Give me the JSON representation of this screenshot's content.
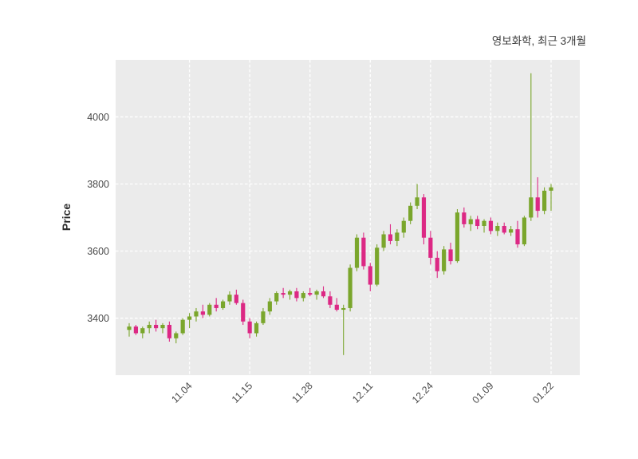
{
  "chart_data": {
    "type": "candlestick",
    "title": "영보화학, 최근 3개월",
    "ylabel": "Price",
    "plot_bg": "#ebebeb",
    "grid_color": "#ffffff",
    "up_color": "#7aa62c",
    "down_color": "#dc2884",
    "ylim": [
      3230,
      4170
    ],
    "yticks": [
      3400,
      3600,
      3800,
      4000
    ],
    "xticks": [
      {
        "index": 9,
        "label": "11.04"
      },
      {
        "index": 18,
        "label": "11.15"
      },
      {
        "index": 27,
        "label": "11.28"
      },
      {
        "index": 36,
        "label": "12.11"
      },
      {
        "index": 45,
        "label": "12.24"
      },
      {
        "index": 54,
        "label": "01.09"
      },
      {
        "index": 63,
        "label": "01.22"
      }
    ],
    "candles": [
      [
        "10.22",
        3365,
        3385,
        3345,
        3375
      ],
      [
        "10.23",
        3375,
        3380,
        3350,
        3355
      ],
      [
        "10.24",
        3355,
        3375,
        3340,
        3370
      ],
      [
        "10.25",
        3370,
        3390,
        3355,
        3380
      ],
      [
        "10.28",
        3380,
        3395,
        3360,
        3370
      ],
      [
        "10.29",
        3370,
        3385,
        3355,
        3380
      ],
      [
        "10.30",
        3380,
        3390,
        3330,
        3340
      ],
      [
        "10.31",
        3340,
        3360,
        3325,
        3355
      ],
      [
        "11.01",
        3355,
        3400,
        3350,
        3395
      ],
      [
        "11.04",
        3395,
        3415,
        3370,
        3405
      ],
      [
        "11.05",
        3405,
        3430,
        3390,
        3420
      ],
      [
        "11.06",
        3420,
        3440,
        3400,
        3410
      ],
      [
        "11.07",
        3410,
        3445,
        3405,
        3440
      ],
      [
        "11.08",
        3440,
        3460,
        3420,
        3430
      ],
      [
        "11.11",
        3430,
        3455,
        3425,
        3450
      ],
      [
        "11.12",
        3450,
        3480,
        3440,
        3470
      ],
      [
        "11.13",
        3470,
        3485,
        3440,
        3445
      ],
      [
        "11.14",
        3445,
        3455,
        3380,
        3390
      ],
      [
        "11.15",
        3390,
        3400,
        3340,
        3355
      ],
      [
        "11.18",
        3355,
        3390,
        3345,
        3385
      ],
      [
        "11.19",
        3385,
        3430,
        3380,
        3420
      ],
      [
        "11.20",
        3420,
        3460,
        3410,
        3450
      ],
      [
        "11.21",
        3450,
        3480,
        3440,
        3475
      ],
      [
        "11.22",
        3475,
        3490,
        3460,
        3470
      ],
      [
        "11.25",
        3470,
        3485,
        3455,
        3480
      ],
      [
        "11.26",
        3480,
        3490,
        3450,
        3460
      ],
      [
        "11.27",
        3460,
        3480,
        3450,
        3475
      ],
      [
        "11.28",
        3475,
        3490,
        3465,
        3470
      ],
      [
        "11.29",
        3470,
        3485,
        3455,
        3480
      ],
      [
        "12.02",
        3480,
        3495,
        3460,
        3465
      ],
      [
        "12.03",
        3465,
        3480,
        3430,
        3440
      ],
      [
        "12.04",
        3440,
        3460,
        3420,
        3425
      ],
      [
        "12.05",
        3425,
        3440,
        3290,
        3430
      ],
      [
        "12.06",
        3430,
        3560,
        3420,
        3550
      ],
      [
        "12.09",
        3550,
        3650,
        3540,
        3640
      ],
      [
        "12.10",
        3640,
        3655,
        3545,
        3555
      ],
      [
        "12.11",
        3555,
        3565,
        3480,
        3500
      ],
      [
        "12.12",
        3500,
        3620,
        3495,
        3610
      ],
      [
        "12.13",
        3610,
        3660,
        3600,
        3650
      ],
      [
        "12.16",
        3650,
        3680,
        3620,
        3630
      ],
      [
        "12.17",
        3630,
        3665,
        3615,
        3655
      ],
      [
        "12.18",
        3655,
        3700,
        3640,
        3690
      ],
      [
        "12.19",
        3690,
        3745,
        3680,
        3735
      ],
      [
        "12.20",
        3735,
        3800,
        3725,
        3760
      ],
      [
        "12.23",
        3760,
        3770,
        3620,
        3640
      ],
      [
        "12.24",
        3640,
        3660,
        3560,
        3580
      ],
      [
        "12.26",
        3580,
        3600,
        3520,
        3540
      ],
      [
        "12.27",
        3540,
        3615,
        3530,
        3605
      ],
      [
        "12.30",
        3605,
        3625,
        3560,
        3570
      ],
      [
        "01.02",
        3570,
        3725,
        3565,
        3715
      ],
      [
        "01.03",
        3715,
        3730,
        3670,
        3680
      ],
      [
        "01.06",
        3680,
        3705,
        3660,
        3695
      ],
      [
        "01.07",
        3695,
        3705,
        3665,
        3675
      ],
      [
        "01.08",
        3675,
        3695,
        3655,
        3690
      ],
      [
        "01.09",
        3690,
        3700,
        3650,
        3660
      ],
      [
        "01.10",
        3660,
        3685,
        3645,
        3675
      ],
      [
        "01.13",
        3675,
        3685,
        3650,
        3655
      ],
      [
        "01.14",
        3655,
        3675,
        3645,
        3665
      ],
      [
        "01.15",
        3665,
        3690,
        3610,
        3620
      ],
      [
        "01.16",
        3620,
        3705,
        3615,
        3700
      ],
      [
        "01.17",
        3700,
        4130,
        3690,
        3760
      ],
      [
        "01.20",
        3760,
        3820,
        3700,
        3720
      ],
      [
        "01.21",
        3720,
        3790,
        3710,
        3780
      ],
      [
        "01.22",
        3780,
        3800,
        3720,
        3790
      ]
    ]
  }
}
